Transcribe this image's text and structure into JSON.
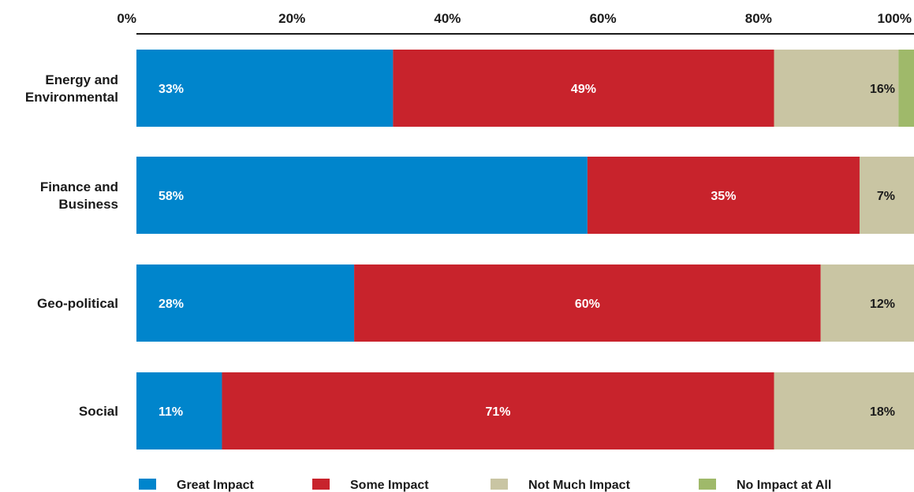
{
  "chart_data": {
    "type": "bar",
    "orientation": "horizontal",
    "stacked": true,
    "xlim": [
      0,
      100
    ],
    "x_tick_labels": [
      "0%",
      "20%",
      "40%",
      "60%",
      "80%",
      "100%"
    ],
    "x_ticks": [
      0,
      20,
      40,
      60,
      80,
      100
    ],
    "categories": [
      [
        "Energy and",
        "Environmental"
      ],
      [
        "Finance and",
        "Business"
      ],
      [
        "Geo-political"
      ],
      [
        "Social"
      ]
    ],
    "series": [
      {
        "name": "Great Impact",
        "color": "#0085CC",
        "values": [
          33,
          58,
          28,
          11
        ],
        "labels": [
          "33%",
          "58%",
          "28%",
          "11%"
        ],
        "label_color": "#ffffff"
      },
      {
        "name": "Some Impact",
        "color": "#C8232C",
        "values": [
          49,
          35,
          60,
          71
        ],
        "labels": [
          "49%",
          "35%",
          "60%",
          "71%"
        ],
        "label_color": "#ffffff"
      },
      {
        "name": "Not Much Impact",
        "color": "#C9C5A3",
        "values": [
          16,
          7,
          12,
          18
        ],
        "labels": [
          "16%",
          "7%",
          "12%",
          "18%"
        ],
        "label_color": "#1a1a1a"
      },
      {
        "name": "No Impact at All",
        "color": "#9FB96A",
        "values": [
          2,
          0,
          0,
          0
        ],
        "labels": [
          "",
          "",
          "",
          ""
        ],
        "label_color": "#1a1a1a"
      }
    ],
    "grid": false,
    "legend_position": "bottom"
  }
}
